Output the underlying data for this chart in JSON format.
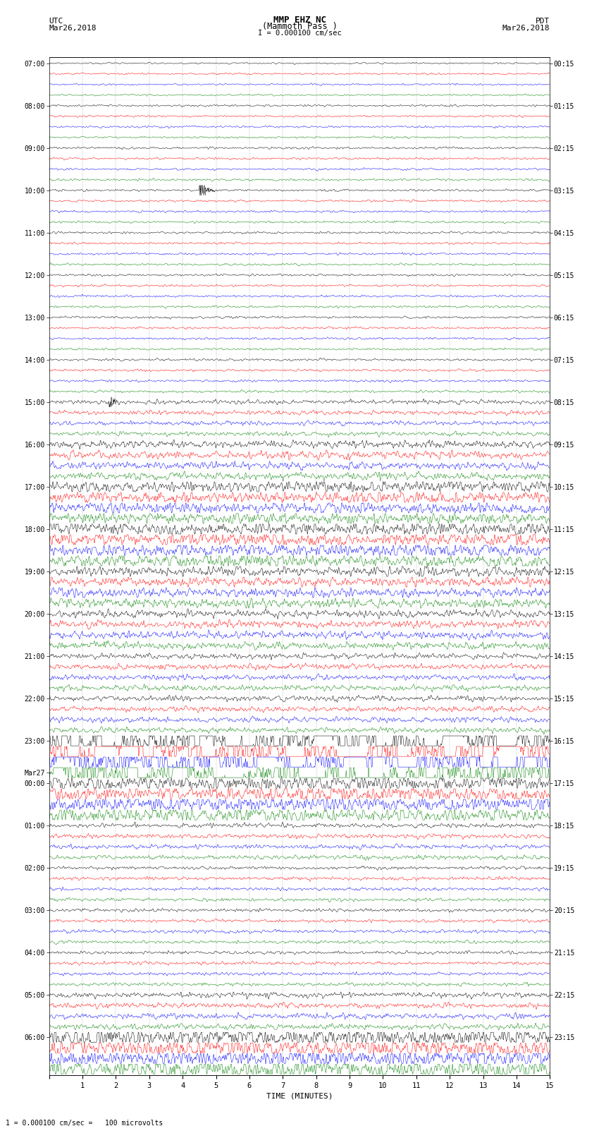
{
  "title_line1": "MMP EHZ NC",
  "title_line2": "(Mammoth Pass )",
  "scale_text": "I = 0.000100 cm/sec",
  "left_header": "UTC",
  "left_date": "Mar26,2018",
  "right_header": "PDT",
  "right_date": "Mar26,2018",
  "xlabel": "TIME (MINUTES)",
  "footer_text": "1 = 0.000100 cm/sec =   100 microvolts",
  "trace_colors_cycle": [
    "black",
    "red",
    "blue",
    "green"
  ],
  "n_traces": 96,
  "n_points": 1800,
  "xmin": 0,
  "xmax": 15,
  "bg_color": "white",
  "left_tick_labels": [
    "07:00",
    "08:00",
    "09:00",
    "10:00",
    "11:00",
    "12:00",
    "13:00",
    "14:00",
    "15:00",
    "16:00",
    "17:00",
    "18:00",
    "19:00",
    "20:00",
    "21:00",
    "22:00",
    "23:00",
    "Mar27",
    "00:00",
    "01:00",
    "02:00",
    "03:00",
    "04:00",
    "05:00",
    "06:00"
  ],
  "left_tick_trace_indices": [
    0,
    4,
    8,
    12,
    16,
    20,
    24,
    28,
    32,
    36,
    40,
    44,
    48,
    52,
    56,
    60,
    64,
    67,
    68,
    72,
    76,
    80,
    84,
    88,
    92
  ],
  "right_tick_labels": [
    "00:15",
    "01:15",
    "02:15",
    "03:15",
    "04:15",
    "05:15",
    "06:15",
    "07:15",
    "08:15",
    "09:15",
    "10:15",
    "11:15",
    "12:15",
    "13:15",
    "14:15",
    "15:15",
    "16:15",
    "17:15",
    "18:15",
    "19:15",
    "20:15",
    "21:15",
    "22:15",
    "23:15"
  ],
  "right_tick_trace_indices": [
    0,
    4,
    8,
    12,
    16,
    20,
    24,
    28,
    32,
    36,
    40,
    44,
    48,
    52,
    56,
    60,
    64,
    68,
    72,
    76,
    80,
    84,
    88,
    92
  ],
  "amplitude_by_trace": [
    0.08,
    0.08,
    0.08,
    0.08,
    0.09,
    0.09,
    0.09,
    0.09,
    0.1,
    0.1,
    0.1,
    0.1,
    0.1,
    0.1,
    0.1,
    0.1,
    0.1,
    0.1,
    0.1,
    0.1,
    0.1,
    0.1,
    0.1,
    0.1,
    0.1,
    0.1,
    0.1,
    0.1,
    0.11,
    0.11,
    0.11,
    0.11,
    0.2,
    0.2,
    0.2,
    0.2,
    0.35,
    0.35,
    0.35,
    0.35,
    0.55,
    0.55,
    0.55,
    0.55,
    0.6,
    0.6,
    0.6,
    0.6,
    0.45,
    0.45,
    0.45,
    0.45,
    0.35,
    0.35,
    0.35,
    0.35,
    0.25,
    0.25,
    0.25,
    0.25,
    0.25,
    0.25,
    0.25,
    0.25,
    1.8,
    1.8,
    1.8,
    1.8,
    0.7,
    0.7,
    0.7,
    0.7,
    0.2,
    0.2,
    0.2,
    0.2,
    0.15,
    0.15,
    0.15,
    0.15,
    0.15,
    0.15,
    0.15,
    0.15,
    0.15,
    0.15,
    0.15,
    0.15,
    0.25,
    0.25,
    0.25,
    0.25,
    0.9,
    0.9,
    0.9,
    0.9
  ]
}
